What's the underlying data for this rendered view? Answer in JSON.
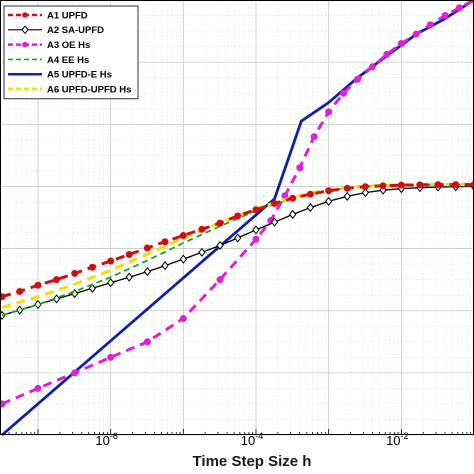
{
  "chart_data": {
    "type": "line",
    "xlabel": "Time Step Size h",
    "xscale": "log",
    "xlim": [
      3e-08,
      0.1
    ],
    "ylim": [
      0,
      14
    ],
    "ylabel": "",
    "grid": true,
    "minor_grid": true,
    "legend_position": "top-left",
    "x_ticks": [
      {
        "base": "10",
        "exponent": "-6",
        "value": 1e-06
      },
      {
        "base": "10",
        "exponent": "-4",
        "value": 0.0001
      },
      {
        "base": "10",
        "exponent": "-2",
        "value": 0.01
      }
    ],
    "series": [
      {
        "name": "A1 UPFD",
        "color": "#d01010",
        "dash": "dash",
        "marker": "dot",
        "x": [
          3.2e-08,
          5.6e-08,
          1e-07,
          1.8e-07,
          3.2e-07,
          5.6e-07,
          1e-06,
          1.8e-06,
          3.2e-06,
          5.6e-06,
          1e-05,
          1.8e-05,
          3.2e-05,
          5.6e-05,
          0.0001,
          0.00018,
          0.00032,
          0.00056,
          0.001,
          0.0018,
          0.0032,
          0.0056,
          0.01,
          0.018,
          0.032,
          0.056,
          0.1
        ],
        "y": [
          4.45,
          4.62,
          4.82,
          5.0,
          5.2,
          5.4,
          5.6,
          5.81,
          6.02,
          6.22,
          6.42,
          6.62,
          6.82,
          7.05,
          7.25,
          7.45,
          7.62,
          7.75,
          7.86,
          7.94,
          7.99,
          8.02,
          8.04,
          8.05,
          8.06,
          8.06,
          8.06
        ]
      },
      {
        "name": "A2 SA-UPFD",
        "color": "#000000",
        "dash": "solid",
        "marker": "diamond",
        "x": [
          3.2e-08,
          5.6e-08,
          1e-07,
          1.8e-07,
          3.2e-07,
          5.6e-07,
          1e-06,
          1.8e-06,
          3.2e-06,
          5.6e-06,
          1e-05,
          1.8e-05,
          3.2e-05,
          5.6e-05,
          0.0001,
          0.00018,
          0.00032,
          0.00056,
          0.001,
          0.0018,
          0.0032,
          0.0056,
          0.01,
          0.018,
          0.032,
          0.056,
          0.1
        ],
        "y": [
          3.85,
          4.02,
          4.2,
          4.38,
          4.55,
          4.72,
          4.9,
          5.08,
          5.26,
          5.45,
          5.66,
          5.88,
          6.1,
          6.34,
          6.6,
          6.85,
          7.1,
          7.32,
          7.52,
          7.68,
          7.8,
          7.88,
          7.93,
          7.96,
          7.98,
          7.99,
          8.0
        ]
      },
      {
        "name": "A3 OE Hs",
        "color": "#e020d8",
        "dash": "dash",
        "marker": "dot",
        "x": [
          3.2e-08,
          1e-07,
          3.2e-07,
          1e-06,
          3.2e-06,
          1e-05,
          3.2e-05,
          0.0001,
          0.00016,
          0.00025,
          0.0004,
          0.00063,
          0.001,
          0.0016,
          0.0025,
          0.004,
          0.0063,
          0.01,
          0.016,
          0.025,
          0.04,
          0.063,
          0.1
        ],
        "y": [
          1.0,
          1.5,
          2.0,
          2.5,
          3.0,
          3.75,
          5.0,
          6.3,
          6.9,
          7.7,
          8.6,
          9.6,
          10.4,
          11.0,
          11.45,
          11.85,
          12.25,
          12.6,
          12.9,
          13.2,
          13.5,
          13.75,
          14.0
        ]
      },
      {
        "name": "A4 EE Hs",
        "color": "#18a818",
        "dash": "dash",
        "marker": "none",
        "x": [
          3.2e-08,
          1e-07,
          3.2e-07,
          1e-06,
          3.2e-06,
          1e-05,
          3.2e-05,
          0.0001,
          0.00032,
          0.001,
          0.0032,
          0.01,
          0.032,
          0.1
        ],
        "y": [
          3.85,
          4.2,
          4.62,
          5.08,
          5.62,
          6.18,
          6.72,
          7.22,
          7.62,
          7.88,
          8.0,
          8.04,
          8.06,
          8.06
        ]
      },
      {
        "name": "A5 UPFD-E Hs",
        "color": "#1020a8",
        "dash": "solid",
        "marker": "none",
        "x": [
          3.2e-08,
          0.00018,
          0.00042,
          0.001,
          0.0025,
          0.0063,
          0.016,
          0.04,
          0.1
        ],
        "y": [
          0.0,
          7.6,
          10.1,
          10.7,
          11.5,
          12.2,
          12.9,
          13.4,
          14.0
        ]
      },
      {
        "name": "A6 UPFD-UPFD Hs",
        "color": "#f0e010",
        "dash": "dash",
        "marker": "none",
        "x": [
          3.2e-08,
          1e-07,
          3.2e-07,
          1e-06,
          3.2e-06,
          1e-05,
          3.2e-05,
          0.0001,
          0.00032,
          0.001,
          0.0032,
          0.01,
          0.032,
          0.1
        ],
        "y": [
          4.1,
          4.45,
          4.85,
          5.3,
          5.82,
          6.33,
          6.83,
          7.28,
          7.65,
          7.9,
          8.01,
          8.05,
          8.06,
          8.06
        ]
      }
    ]
  }
}
